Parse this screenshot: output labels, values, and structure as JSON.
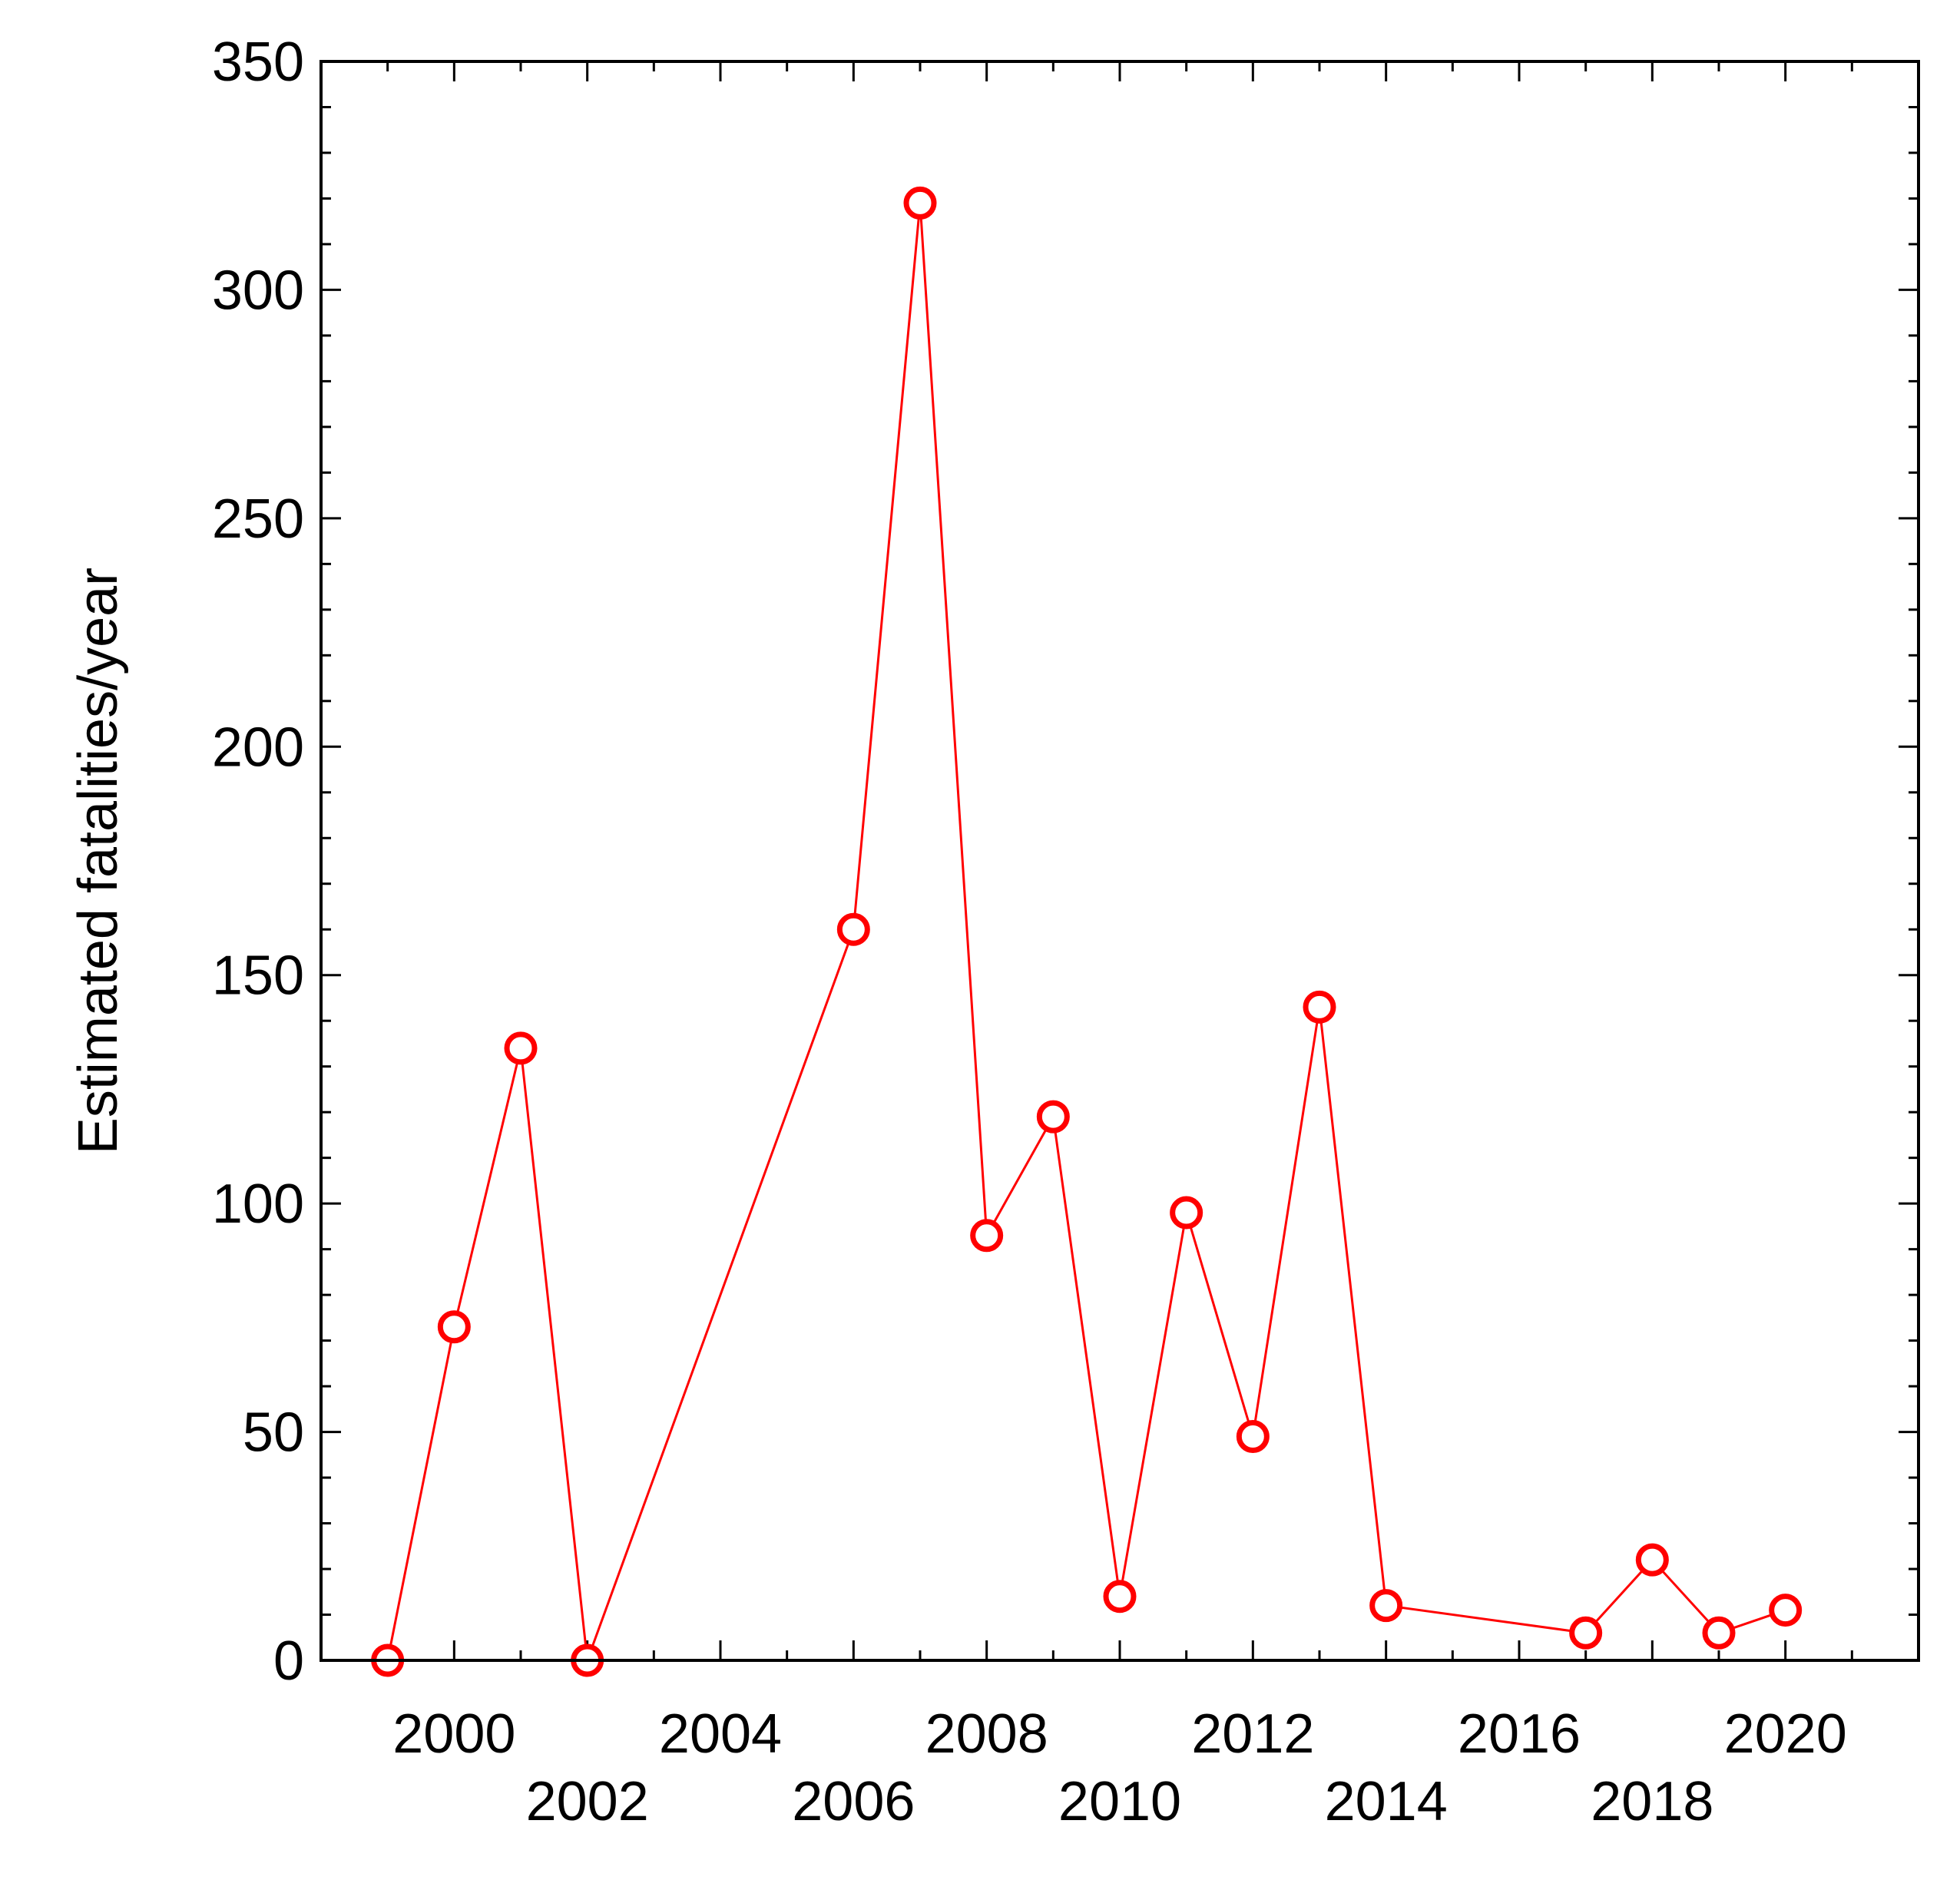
{
  "chart_data": {
    "type": "line",
    "title": "",
    "xlabel": "",
    "ylabel": "Estimated fatalities/year",
    "xlim": [
      1998,
      2022
    ],
    "ylim": [
      0,
      350
    ],
    "grid": false,
    "x_ticks": [
      2000,
      2002,
      2004,
      2006,
      2008,
      2010,
      2012,
      2014,
      2016,
      2018,
      2020
    ],
    "x_tick_labels": [
      "2000",
      "2002",
      "2004",
      "2006",
      "2008",
      "2010",
      "2012",
      "2014",
      "2016",
      "2018",
      "2020"
    ],
    "y_ticks": [
      0,
      50,
      100,
      150,
      200,
      250,
      300,
      350
    ],
    "y_tick_labels": [
      "0",
      "50",
      "100",
      "150",
      "200",
      "250",
      "300",
      "350"
    ],
    "series": [
      {
        "color": "#ff0000",
        "marker": "open-circle",
        "x": [
          1999,
          2000,
          2001,
          2002,
          2006,
          2007,
          2008,
          2009,
          2010,
          2011,
          2012,
          2013,
          2014,
          2017,
          2018,
          2019,
          2020
        ],
        "y": [
          0,
          73,
          134,
          0,
          160,
          319,
          93,
          119,
          14,
          98,
          49,
          143,
          12,
          6,
          22,
          6,
          11
        ]
      }
    ]
  }
}
